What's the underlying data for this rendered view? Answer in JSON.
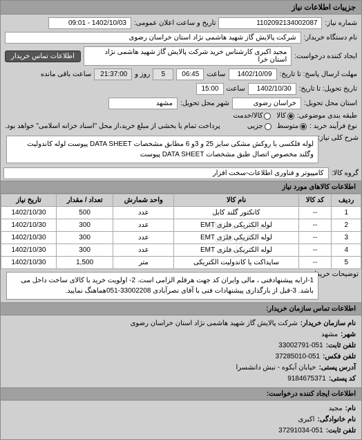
{
  "window": {
    "title": "جزییات اطلاعات نیاز"
  },
  "header": {
    "req_num_label": "شماره نیاز:",
    "req_num": "1102092134002087",
    "announce_label": "تاریخ و ساعت اعلان عمومی:",
    "announce_value": "1402/10/03 - 09:01",
    "buyer_org_label": "نام دستگاه خریدار:",
    "buyer_org": "شرکت پالایش گاز شهید هاشمی نژاد   استان خراسان رضوی",
    "creator_label": "ایجاد کننده درخواست:",
    "creator": "مجید اکبری کارشناس خرید شرکت پالایش گاز شهید هاشمی نژاد   استان خرا",
    "contact_btn": "اطلاعات تماس خریدار",
    "deadline_label": "مهلت ارسال پاسخ: تا تاریخ:",
    "deadline_date": "1402/10/09",
    "time_label": "ساعت",
    "deadline_time": "06:45",
    "days_label": "روز و",
    "days": "5",
    "remain_time": "21:37:00",
    "remain_label": "ساعت باقی مانده",
    "pickup_label": "تاریخ تحویل: تا تاریخ:",
    "pickup_date": "1402/10/30",
    "pickup_time": "15:00",
    "province_label": "استان محل تحویل:",
    "province": "خراسان رضوی",
    "city_label": "شهر محل تحویل:",
    "city": "مشهد",
    "group_label": "طبقه بندی موضوعی:",
    "radio_type_label": "نوع فرآیند خرید :",
    "radio_medium": "متوسط",
    "radio_goods": "کالا",
    "radio_lowvalue": "جزیی",
    "radio_credit": "کالا/خدمت",
    "payment_note": "پرداخت تمام یا بخشی از مبلغ خرید،از محل \"اسناد خزانه اسلامی\" خواهد بود."
  },
  "desc": {
    "label": "شرح کلی نیاز:",
    "text": "لوله فلکسی با روکش مشکی سایز 25 و 3و 6 مطابق مشخصات DATA SHEET پیوست لوله کاندولیت وگلند مخصوص اتصال طبق مشخصات DATA SHEET پیوست"
  },
  "group_row": {
    "label": "گروه کالا:",
    "value": "کامپیوتر و فناوری اطلاعات-سخت افزار"
  },
  "table": {
    "title": "اطلاعات کالاهای مورد نیاز",
    "headers": {
      "row": "ردیف",
      "code": "کد کالا",
      "name": "نام کالا",
      "unit": "واحد شمارش",
      "qty": "تعداد / مقدار",
      "date": "تاریخ نیاز"
    },
    "rows": [
      {
        "n": "1",
        "code": "--",
        "name": "کانکتور گلند کابل",
        "unit": "عدد",
        "qty": "500",
        "date": "1402/10/30"
      },
      {
        "n": "2",
        "code": "--",
        "name": "لوله الکتریکی فلزی EMT",
        "unit": "عدد",
        "qty": "300",
        "date": "1402/10/30"
      },
      {
        "n": "3",
        "code": "--",
        "name": "لوله الکتریکی فلزی EMT",
        "unit": "عدد",
        "qty": "300",
        "date": "1402/10/30"
      },
      {
        "n": "4",
        "code": "--",
        "name": "لوله الکتریکی فلزی EMT",
        "unit": "عدد",
        "qty": "300",
        "date": "1402/10/30"
      },
      {
        "n": "5",
        "code": "--",
        "name": "ساپداکت یا کاندولیت الکتریکی",
        "unit": "متر",
        "qty": "1,500",
        "date": "1402/10/30"
      }
    ],
    "watermark": "سامانه تدارکات الکترونیکی دولت"
  },
  "notes": {
    "label": "توضیحات خریدار:",
    "text": "1-ارایه پیشنهادفنی ، مالی وایران کد جهت هرقلم الزامی است. 2- اولویت خرید با کالای ساخت داخل می باشد. 3-قبل از بارگذاری پیشنهادات فنی با آقای نصرآبادی 33002208-051هماهنگ نمایید."
  },
  "contact_section": {
    "title": "اطلاعات تماس سازمان خریدار:",
    "org_label": "نام سازمان خریدار:",
    "org": "شرکت پالایش گاز شهید هاشمی نژاد استان خراسان رضوی",
    "city_label": "شهر:",
    "city": "مشهد",
    "tel_label": "تلفن ثابت:",
    "tel": "33002791-051",
    "fax_label": "تلفن فکس:",
    "fax": "37285010-051",
    "addr_label": "آدرس پستی:",
    "addr": "خیابان آبکوه - نبش دانشسرا",
    "post_label": "کد پستی:",
    "post": "9184675371"
  },
  "creator_section": {
    "title": "اطلاعات ایجاد کننده درخواست:",
    "name_label": "نام:",
    "name": "مجید",
    "lname_label": "نام خانوادگی:",
    "lname": "اکبری",
    "tel_label": "تلفن ثابت:",
    "tel": "37291034-051"
  }
}
